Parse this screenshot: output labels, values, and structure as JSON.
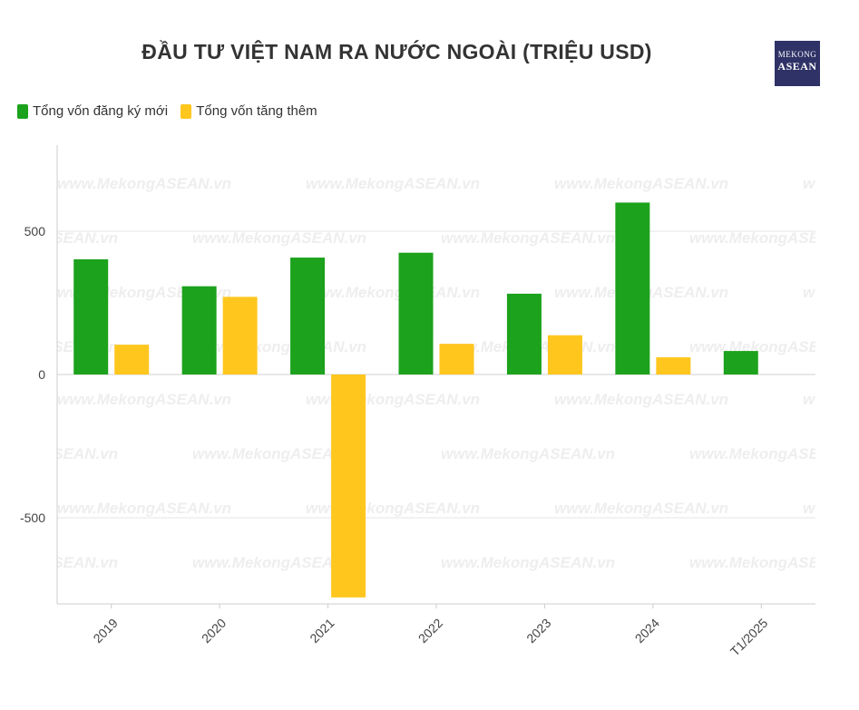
{
  "title": "ĐẦU TƯ VIỆT NAM RA NƯỚC NGOÀI (TRIỆU USD)",
  "logo": {
    "line1": "MEKONG",
    "line2": "ASEAN"
  },
  "watermark": "www.MekongASEAN.vn",
  "colors": {
    "new_registered": "#1ca21c",
    "added": "#ffc61e",
    "grid": "#e6e6e6",
    "axis": "#cccccc"
  },
  "chart_data": {
    "type": "bar",
    "title": "ĐẦU TƯ VIỆT NAM RA NƯỚC NGOÀI (TRIỆU USD)",
    "categories": [
      "2019",
      "2020",
      "2021",
      "2022",
      "2023",
      "2024",
      "T1/2025"
    ],
    "series": [
      {
        "name": "Tổng vốn đăng ký mới",
        "color": "#1ca21c",
        "values": [
          402,
          308,
          408,
          425,
          282,
          600,
          82
        ]
      },
      {
        "name": "Tổng vốn tăng thêm",
        "color": "#ffc61e",
        "values": [
          104,
          271,
          -778,
          107,
          137,
          60,
          null
        ]
      }
    ],
    "yticks": [
      -500,
      0,
      500
    ],
    "ylim": [
      -800,
      800
    ],
    "xlabel": "",
    "ylabel": "",
    "grid": true,
    "legend": "top-left"
  }
}
